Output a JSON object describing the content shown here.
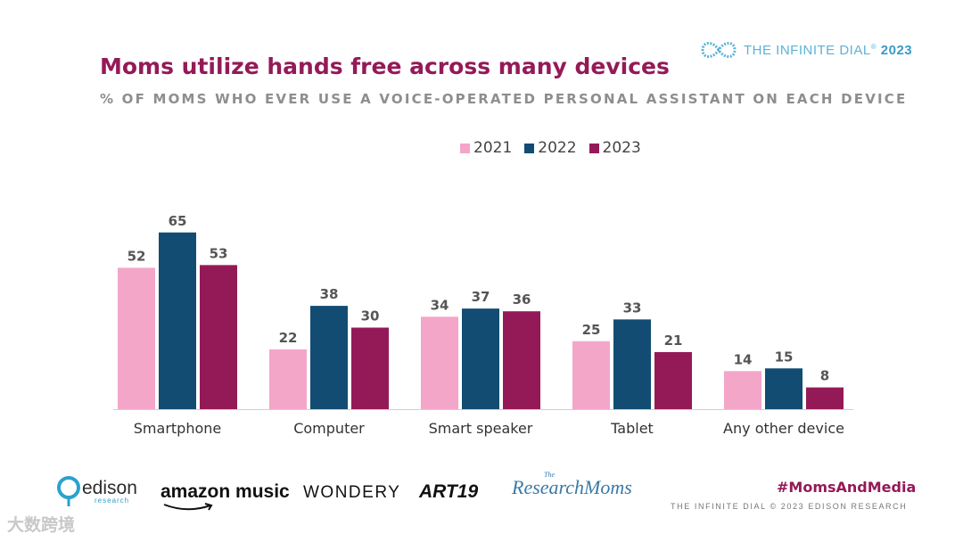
{
  "brand": {
    "prefix": "THE ",
    "name": "INFINITE DIAL",
    "reg": "®",
    "year": "2023"
  },
  "colors": {
    "accent": "#941a57",
    "2021": "#f4a6c9",
    "2022": "#124c73",
    "2023": "#941a57"
  },
  "footer": {
    "logos": {
      "edison": "edison",
      "edison_sub": "research",
      "amazon": "amazon music",
      "wondery": "WONDERY",
      "art19": "ART19",
      "researchmoms": "ResearchMoms",
      "researchmoms_the": "The"
    },
    "hashtag": "#MomsAndMedia",
    "copyright": "THE INFINITE DIAL  © 2023 EDISON RESEARCH"
  },
  "watermark": "大数跨境",
  "chart_data": {
    "type": "bar",
    "title": "Moms utilize hands free across many devices",
    "subtitle": "% OF MOMS WHO EVER USE A VOICE-OPERATED PERSONAL ASSISTANT ON EACH DEVICE",
    "categories": [
      "Smartphone",
      "Computer",
      "Smart speaker",
      "Tablet",
      "Any other device"
    ],
    "series": [
      {
        "name": "2021",
        "values": [
          52,
          22,
          34,
          25,
          14
        ]
      },
      {
        "name": "2022",
        "values": [
          65,
          38,
          37,
          33,
          15
        ]
      },
      {
        "name": "2023",
        "values": [
          53,
          30,
          36,
          21,
          8
        ]
      }
    ],
    "ylim": [
      0,
      70
    ],
    "legend_position": "top-center",
    "grid": false
  }
}
